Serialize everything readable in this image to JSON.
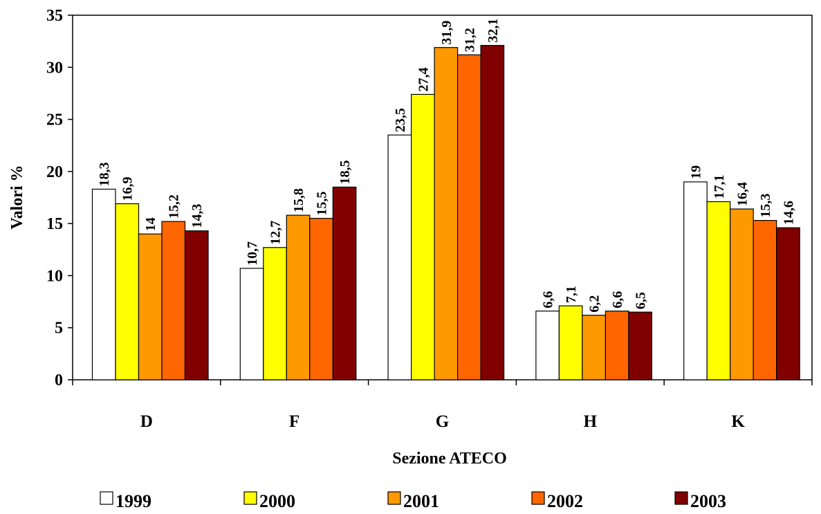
{
  "chart_data": {
    "type": "bar",
    "xlabel": "Sezione ATECO",
    "ylabel": "Valori %",
    "ylim": [
      0,
      35
    ],
    "yticks": [
      "0",
      "5",
      "10",
      "15",
      "20",
      "25",
      "30",
      "35"
    ],
    "grid": false,
    "legend_position": "bottom",
    "categories": [
      "D",
      "F",
      "G",
      "H",
      "K"
    ],
    "series": [
      {
        "name": "1999",
        "color": "#FFFFFF",
        "values": [
          18.3,
          10.7,
          23.5,
          6.6,
          19
        ],
        "labels": [
          "18,3",
          "10,7",
          "23,5",
          "6,6",
          "19"
        ]
      },
      {
        "name": "2000",
        "color": "#FFFF00",
        "values": [
          16.9,
          12.7,
          27.4,
          7.1,
          17.1
        ],
        "labels": [
          "16,9",
          "12,7",
          "27,4",
          "7,1",
          "17,1"
        ]
      },
      {
        "name": "2001",
        "color": "#FF9900",
        "values": [
          14,
          15.8,
          31.9,
          6.2,
          16.4
        ],
        "labels": [
          "14",
          "15,8",
          "31,9",
          "6,2",
          "16,4"
        ]
      },
      {
        "name": "2002",
        "color": "#FF6600",
        "values": [
          15.2,
          15.5,
          31.2,
          6.6,
          15.3
        ],
        "labels": [
          "15,2",
          "15,5",
          "31,2",
          "6,6",
          "15,3"
        ]
      },
      {
        "name": "2003",
        "color": "#800000",
        "values": [
          14.3,
          18.5,
          32.1,
          6.5,
          14.6
        ],
        "labels": [
          "14,3",
          "18,5",
          "32,1",
          "6,5",
          "14,6"
        ]
      }
    ]
  }
}
